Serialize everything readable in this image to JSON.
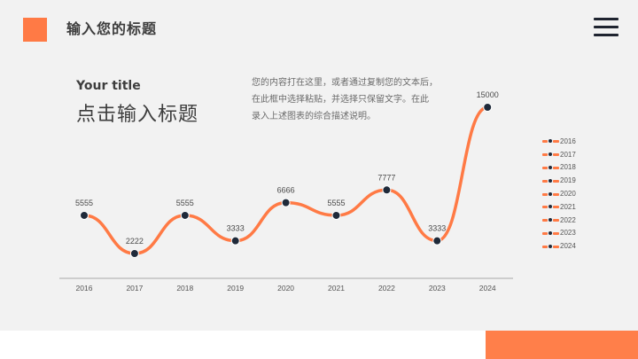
{
  "header": {
    "title": "输入您的标题",
    "accent_color": "#ff7a45",
    "menu_icon": "hamburger-menu-icon"
  },
  "content": {
    "subtitle_en": "Your title",
    "subtitle_cn": "点击输入标题",
    "description_lines": [
      "您的内容打在这里，或者通过复制您的文本后，",
      "在此框中选择粘贴，并选择只保留文字。在此",
      "录入上述图表的综合描述说明。"
    ]
  },
  "chart_data": {
    "type": "line",
    "title": "",
    "xlabel": "",
    "ylabel": "",
    "categories": [
      "2016",
      "2017",
      "2018",
      "2019",
      "2020",
      "2021",
      "2022",
      "2023",
      "2024"
    ],
    "values": [
      5555,
      2222,
      5555,
      3333,
      6666,
      5555,
      7777,
      3333,
      15000
    ],
    "data_labels": [
      "5555",
      "2222",
      "5555",
      "3333",
      "6666",
      "5555",
      "7777",
      "3333",
      "15000"
    ],
    "smooth": true,
    "grid": false,
    "line_color": "#ff7a45",
    "marker_color": "#1f2a3a",
    "legend_position": "right",
    "legend": [
      "2016",
      "2017",
      "2018",
      "2019",
      "2020",
      "2021",
      "2022",
      "2023",
      "2024"
    ]
  },
  "footer": {
    "accent_color": "#ff7f4a"
  }
}
